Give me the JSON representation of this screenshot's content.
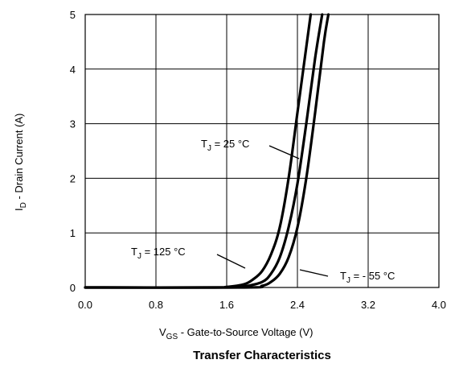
{
  "chart_data": {
    "type": "line",
    "title": "Transfer Characteristics",
    "xlabel": {
      "prefix": "V",
      "sub": "GS",
      "suffix": " - Gate-to-Source Voltage (V)"
    },
    "ylabel": {
      "prefix": "I",
      "sub": "D",
      "suffix": " - Drain Current (A)"
    },
    "xlim": [
      0.0,
      4.0
    ],
    "ylim": [
      0,
      5
    ],
    "xticks": [
      "0.0",
      "0.8",
      "1.6",
      "2.4",
      "3.2",
      "4.0"
    ],
    "yticks": [
      "0",
      "1",
      "2",
      "3",
      "4",
      "5"
    ],
    "grid": true,
    "series": [
      {
        "name": "TJ = 125 °C",
        "label": {
          "prefix": "T",
          "sub": "J",
          "suffix": " = 125 °C"
        },
        "x": [
          0.0,
          1.4,
          1.6,
          1.8,
          1.9,
          2.0,
          2.1,
          2.2,
          2.3,
          2.4,
          2.5,
          2.55
        ],
        "y": [
          0.0,
          0.0,
          0.01,
          0.06,
          0.15,
          0.3,
          0.6,
          1.1,
          2.0,
          3.2,
          4.4,
          5.0
        ]
      },
      {
        "name": "TJ = 25 °C",
        "label": {
          "prefix": "T",
          "sub": "J",
          "suffix": " = 25 °C"
        },
        "x": [
          0.0,
          1.6,
          1.8,
          2.0,
          2.1,
          2.2,
          2.3,
          2.4,
          2.5,
          2.6,
          2.68
        ],
        "y": [
          0.0,
          0.0,
          0.02,
          0.1,
          0.25,
          0.55,
          1.1,
          1.9,
          3.0,
          4.2,
          5.0
        ]
      },
      {
        "name": "TJ = - 55 °C",
        "label": {
          "prefix": "T",
          "sub": "J",
          "suffix": " = - 55 °C"
        },
        "x": [
          0.0,
          1.8,
          2.0,
          2.1,
          2.2,
          2.3,
          2.4,
          2.5,
          2.6,
          2.7,
          2.75
        ],
        "y": [
          0.0,
          0.0,
          0.03,
          0.1,
          0.25,
          0.55,
          1.1,
          2.0,
          3.2,
          4.5,
          5.0
        ]
      }
    ]
  }
}
